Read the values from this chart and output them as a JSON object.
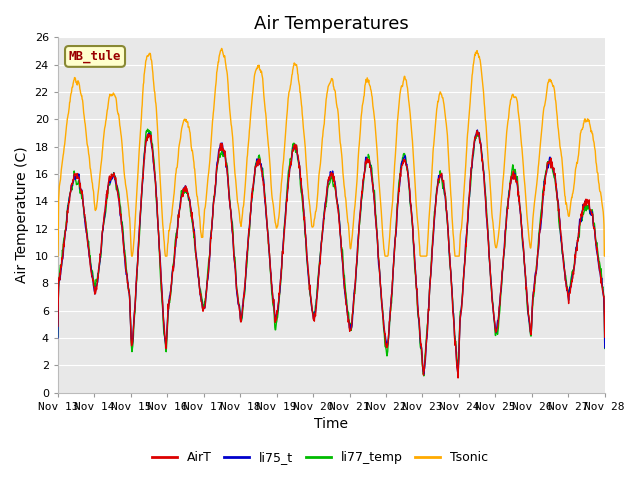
{
  "title": "Air Temperatures",
  "xlabel": "Time",
  "ylabel": "Air Temperature (C)",
  "ylim": [
    0,
    26
  ],
  "xlim_days": 15,
  "station_label": "MB_tule",
  "xtick_labels": [
    "Nov 13",
    "Nov 14",
    "Nov 15",
    "Nov 16",
    "Nov 17",
    "Nov 18",
    "Nov 19",
    "Nov 20",
    "Nov 21",
    "Nov 22",
    "Nov 23",
    "Nov 24",
    "Nov 25",
    "Nov 26",
    "Nov 27",
    "Nov 28"
  ],
  "legend_entries": [
    "AirT",
    "li75_t",
    "li77_temp",
    "Tsonic"
  ],
  "line_colors": [
    "#dd0000",
    "#0000cc",
    "#00bb00",
    "#ffaa00"
  ],
  "plot_bg": "#e8e8e8",
  "fig_bg": "#ffffff",
  "grid_color": "#ffffff",
  "title_fontsize": 13,
  "axis_fontsize": 10,
  "tick_fontsize": 8,
  "station_label_color": "#990000",
  "station_box_face": "#ffffcc",
  "station_box_edge": "#888833"
}
